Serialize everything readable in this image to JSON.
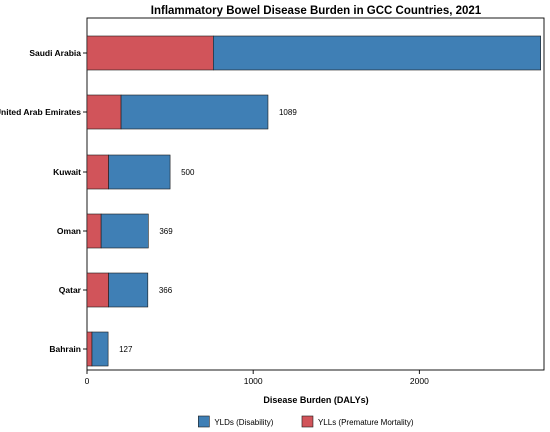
{
  "chart_data": {
    "type": "bar",
    "orientation": "horizontal",
    "stacked": true,
    "title": "Inflammatory Bowel Disease Burden in GCC Countries, 2021",
    "xlabel": "Disease Burden (DALYs)",
    "ylabel": "",
    "xlim": [
      0,
      2750
    ],
    "xticks": [
      0,
      1000,
      2000
    ],
    "categories": [
      "Saudi Arabia",
      "United Arab Emirates",
      "Kuwait",
      "Oman",
      "Qatar",
      "Bahrain"
    ],
    "series": [
      {
        "name": "YLLs (Premature Mortality)",
        "color": "#d1545a",
        "values": [
          760,
          205,
          130,
          85,
          130,
          30
        ]
      },
      {
        "name": "YLDs (Disability)",
        "color": "#3f7fb5",
        "values": [
          1970,
          884,
          370,
          284,
          236,
          97
        ]
      }
    ],
    "value_labels": [
      "",
      "1089",
      "500",
      "369",
      "366",
      "127"
    ],
    "legend_order": [
      "YLDs (Disability)",
      "YLLs (Premature Mortality)"
    ],
    "legend_position": "bottom",
    "grid": false
  }
}
